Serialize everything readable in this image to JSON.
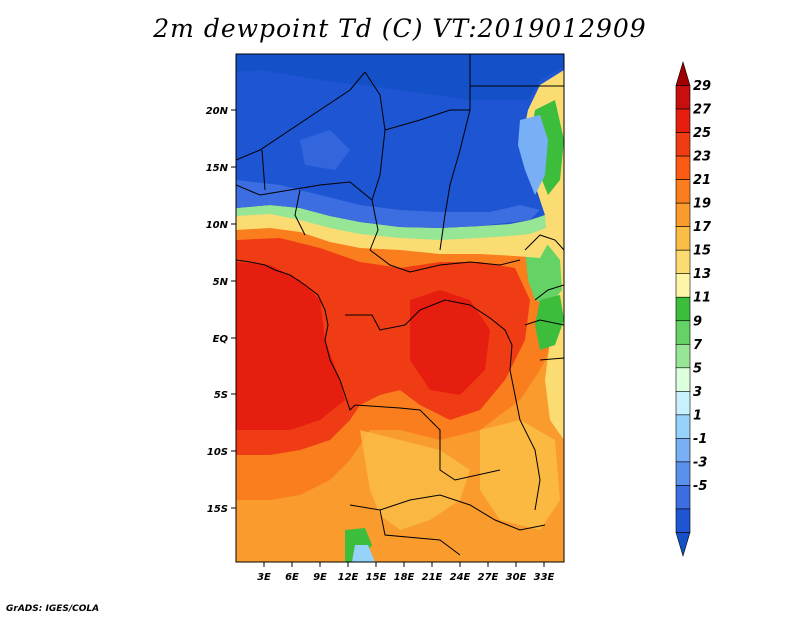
{
  "title": "2m dewpoint Td (C) VT:2019012909",
  "credit": "GrADS: IGES/COLA",
  "map": {
    "variable": "2m dewpoint",
    "units": "C",
    "valid_time": "2019012909",
    "lon_ticks": [
      "3E",
      "6E",
      "9E",
      "12E",
      "15E",
      "18E",
      "21E",
      "24E",
      "27E",
      "30E",
      "33E"
    ],
    "lat_ticks": [
      "20N",
      "15N",
      "10N",
      "5N",
      "EQ",
      "5S",
      "10S",
      "15S"
    ]
  },
  "colorbar": {
    "labels": [
      "29",
      "27",
      "25",
      "23",
      "21",
      "19",
      "17",
      "15",
      "13",
      "11",
      "9",
      "7",
      "5",
      "3",
      "1",
      "-1",
      "-3",
      "-5"
    ],
    "colors": [
      "#a00000",
      "#c80f0f",
      "#e61e0f",
      "#f03c14",
      "#fa5a14",
      "#fa7d1e",
      "#fa9b2d",
      "#fabe46",
      "#fadc73",
      "#fff5aa",
      "#3cbe3c",
      "#64d264",
      "#96e696",
      "#dcffdc",
      "#c8f0ff",
      "#96d2fa",
      "#78aff5",
      "#5a91eb",
      "#3c6ee1",
      "#1e55d2",
      "#1450c8"
    ]
  }
}
